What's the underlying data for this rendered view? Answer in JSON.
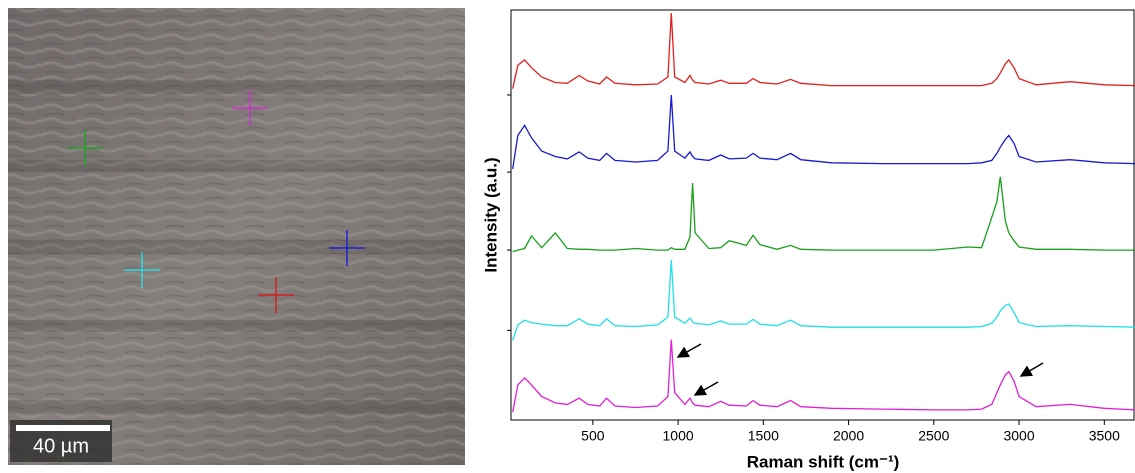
{
  "image": {
    "scale_bar": "40 µm"
  },
  "chart_data": {
    "type": "line",
    "xlabel": "Raman shift (cm⁻¹)",
    "ylabel": "Intensity (a.u.)",
    "xlim": [
      20,
      3680
    ],
    "xticks": [
      500,
      1000,
      1500,
      2000,
      2500,
      3000,
      3500
    ],
    "ylim": [
      0,
      5.26
    ],
    "yticks": [
      1.15,
      2.18,
      3.18,
      4.17
    ],
    "x": [
      30,
      60,
      100,
      140,
      200,
      280,
      350,
      420,
      470,
      540,
      580,
      630,
      750,
      880,
      940,
      960,
      980,
      1040,
      1070,
      1085,
      1100,
      1180,
      1250,
      1300,
      1400,
      1440,
      1480,
      1580,
      1660,
      1720,
      1900,
      2200,
      2500,
      2700,
      2780,
      2840,
      2870,
      2890,
      2920,
      2940,
      2970,
      3000,
      3100,
      3300,
      3500,
      3680
    ],
    "series": [
      {
        "color": "#e02020",
        "values": [
          4.25,
          4.55,
          4.62,
          4.52,
          4.4,
          4.33,
          4.32,
          4.42,
          4.35,
          4.31,
          4.4,
          4.32,
          4.3,
          4.31,
          4.4,
          5.22,
          4.4,
          4.33,
          4.42,
          4.36,
          4.33,
          4.31,
          4.36,
          4.32,
          4.32,
          4.38,
          4.33,
          4.31,
          4.37,
          4.32,
          4.29,
          4.29,
          4.29,
          4.29,
          4.29,
          4.32,
          4.38,
          4.45,
          4.57,
          4.62,
          4.52,
          4.38,
          4.3,
          4.34,
          4.3,
          4.29
        ]
      },
      {
        "color": "#1a1ad0",
        "values": [
          3.22,
          3.65,
          3.78,
          3.62,
          3.45,
          3.38,
          3.35,
          3.44,
          3.36,
          3.33,
          3.42,
          3.33,
          3.31,
          3.33,
          3.45,
          4.17,
          3.45,
          3.36,
          3.44,
          3.38,
          3.35,
          3.33,
          3.4,
          3.35,
          3.36,
          3.42,
          3.36,
          3.34,
          3.42,
          3.34,
          3.3,
          3.29,
          3.29,
          3.29,
          3.3,
          3.33,
          3.42,
          3.5,
          3.6,
          3.65,
          3.55,
          3.38,
          3.31,
          3.34,
          3.3,
          3.29
        ]
      },
      {
        "color": "#1aa01a",
        "values": [
          2.16,
          2.18,
          2.2,
          2.36,
          2.21,
          2.4,
          2.2,
          2.19,
          2.19,
          2.18,
          2.18,
          2.18,
          2.2,
          2.18,
          2.18,
          2.21,
          2.19,
          2.19,
          2.35,
          3.04,
          2.4,
          2.2,
          2.21,
          2.3,
          2.24,
          2.37,
          2.25,
          2.19,
          2.24,
          2.19,
          2.18,
          2.18,
          2.18,
          2.22,
          2.21,
          2.6,
          2.8,
          3.12,
          2.55,
          2.4,
          2.3,
          2.22,
          2.19,
          2.19,
          2.18,
          2.18
        ]
      },
      {
        "color": "#20e0e8",
        "values": [
          1.02,
          1.22,
          1.28,
          1.25,
          1.23,
          1.21,
          1.21,
          1.3,
          1.23,
          1.21,
          1.3,
          1.21,
          1.2,
          1.22,
          1.32,
          2.05,
          1.32,
          1.24,
          1.31,
          1.26,
          1.24,
          1.22,
          1.27,
          1.23,
          1.23,
          1.29,
          1.23,
          1.21,
          1.28,
          1.21,
          1.19,
          1.19,
          1.19,
          1.19,
          1.2,
          1.24,
          1.32,
          1.4,
          1.47,
          1.49,
          1.38,
          1.25,
          1.2,
          1.21,
          1.2,
          1.19
        ]
      },
      {
        "color": "#e020d8",
        "values": [
          0.1,
          0.45,
          0.54,
          0.45,
          0.3,
          0.22,
          0.2,
          0.28,
          0.2,
          0.18,
          0.28,
          0.18,
          0.16,
          0.18,
          0.3,
          1.03,
          0.35,
          0.2,
          0.28,
          0.22,
          0.19,
          0.17,
          0.24,
          0.19,
          0.18,
          0.25,
          0.19,
          0.17,
          0.25,
          0.17,
          0.15,
          0.14,
          0.13,
          0.13,
          0.14,
          0.2,
          0.35,
          0.45,
          0.58,
          0.62,
          0.5,
          0.3,
          0.17,
          0.2,
          0.15,
          0.13
        ]
      }
    ]
  }
}
